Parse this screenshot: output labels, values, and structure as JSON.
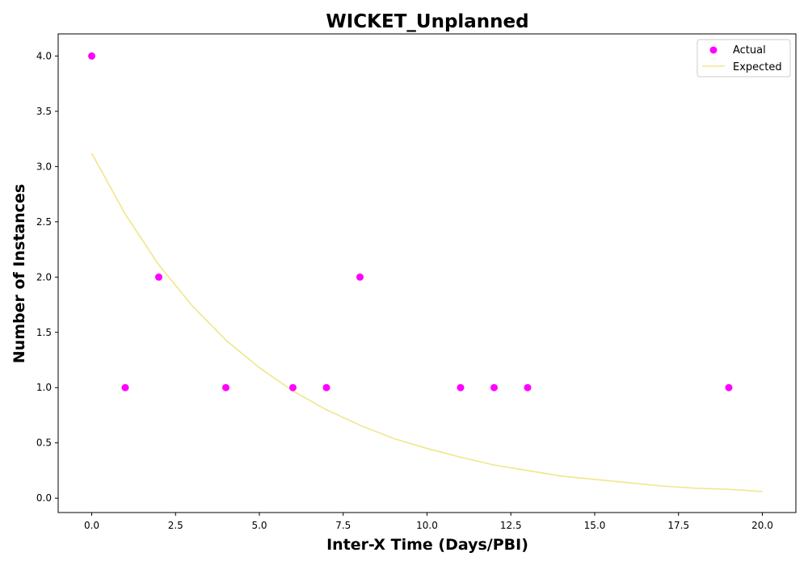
{
  "chart_data": {
    "type": "scatter",
    "title": "WICKET_Unplanned",
    "xlabel": "Inter-X Time (Days/PBI)",
    "ylabel": "Number of Instances",
    "xlim": [
      -1,
      21
    ],
    "ylim": [
      -0.13,
      4.2
    ],
    "xticks": [
      "0.0",
      "2.5",
      "5.0",
      "7.5",
      "10.0",
      "12.5",
      "15.0",
      "17.5",
      "20.0"
    ],
    "yticks": [
      "0.0",
      "0.5",
      "1.0",
      "1.5",
      "2.0",
      "2.5",
      "3.0",
      "3.5",
      "4.0"
    ],
    "legend": {
      "placement": "top-right"
    },
    "series": [
      {
        "name": "Actual",
        "kind": "scatter",
        "color": "#ff00ff",
        "x": [
          0,
          1,
          2,
          4,
          6,
          7,
          8,
          11,
          12,
          13,
          19
        ],
        "y": [
          4,
          1,
          2,
          1,
          1,
          1,
          2,
          1,
          1,
          1,
          1
        ]
      },
      {
        "name": "Expected",
        "kind": "line",
        "color": "#f0e68c",
        "x": [
          0,
          1,
          2,
          3,
          4,
          5,
          6,
          7,
          8,
          9,
          10,
          11,
          12,
          13,
          14,
          15,
          16,
          17,
          18,
          19,
          20
        ],
        "y": [
          3.12,
          2.57,
          2.11,
          1.74,
          1.43,
          1.18,
          0.97,
          0.8,
          0.66,
          0.54,
          0.45,
          0.37,
          0.3,
          0.25,
          0.2,
          0.17,
          0.14,
          0.11,
          0.09,
          0.08,
          0.06
        ]
      }
    ]
  }
}
